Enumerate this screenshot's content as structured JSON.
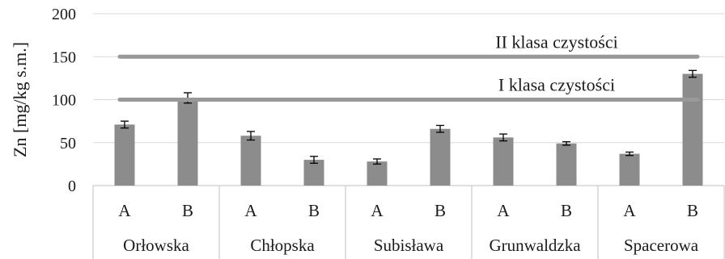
{
  "chart_data": {
    "type": "bar",
    "ylabel": "Zn [mg/kg s.m.]",
    "ylim": [
      0,
      200
    ],
    "yticks": [
      "0",
      "50",
      "100",
      "150",
      "200"
    ],
    "grid": true,
    "groups": [
      "Orłowska",
      "Chłopska",
      "Subisława",
      "Grunwaldzka",
      "Spacerowa"
    ],
    "categories": [
      "A",
      "B",
      "A",
      "B",
      "A",
      "B",
      "A",
      "B",
      "A",
      "B"
    ],
    "values": [
      71,
      102,
      58,
      30,
      28,
      66,
      56,
      49,
      37,
      130
    ],
    "errors": [
      4,
      6,
      5,
      4,
      3,
      4,
      4,
      2,
      2,
      4
    ],
    "reference_lines": [
      {
        "label": "II klasa czystości",
        "value": 150
      },
      {
        "label": "I klasa czystości",
        "value": 100
      }
    ],
    "colors": {
      "bar": "#8c8c8c",
      "reference_line": "#999999",
      "grid": "#d9d9d9"
    }
  }
}
